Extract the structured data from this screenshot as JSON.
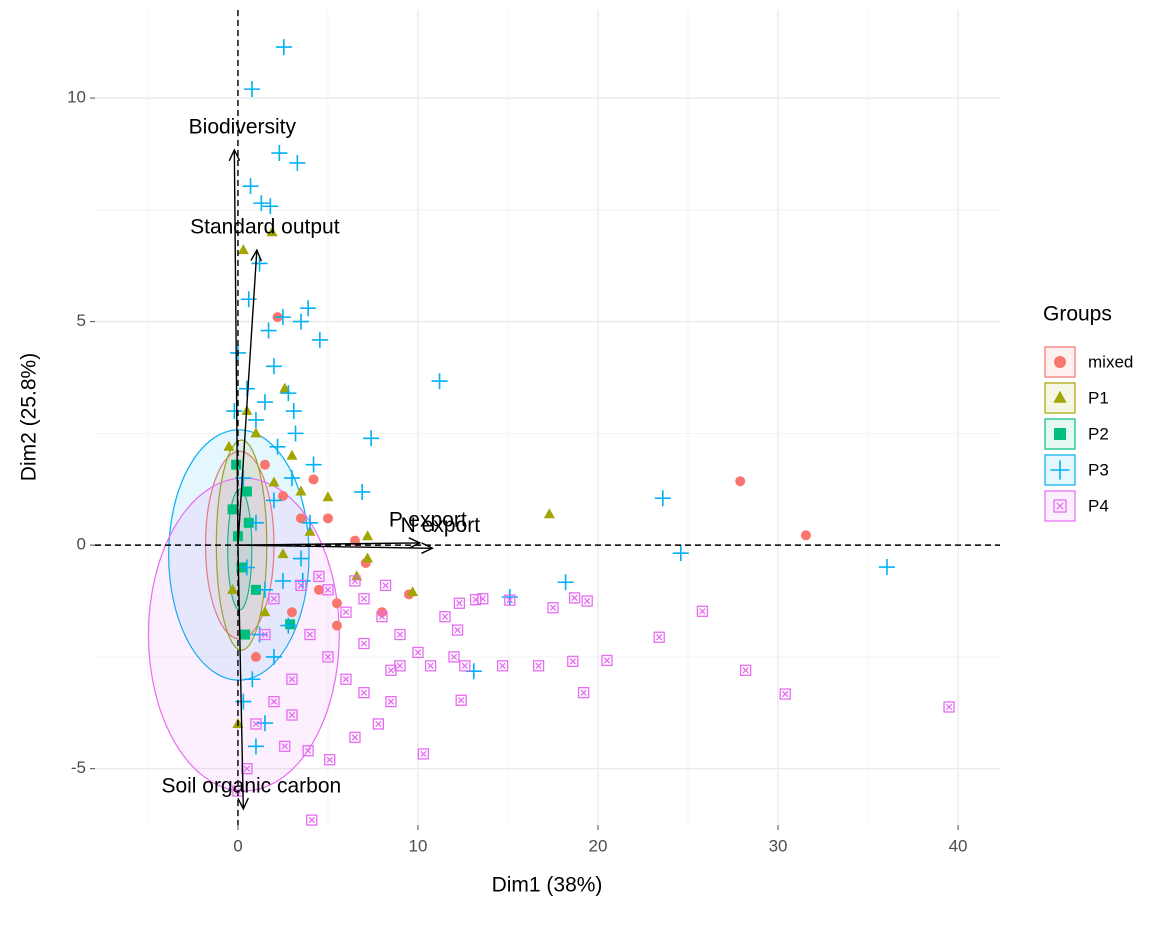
{
  "chart_data": {
    "type": "scatter",
    "x_label": "Dim1 (38%)",
    "y_label": "Dim2 (25.8%)",
    "xlim": [
      -7.94,
      42.33
    ],
    "ylim": [
      -6.26,
      11.97
    ],
    "xticks": [
      0,
      10,
      20,
      30,
      40
    ],
    "yticks": [
      -5,
      0,
      5,
      10
    ],
    "grid": true,
    "minor_grid": true,
    "reference_lines": {
      "x": 0,
      "y": 0
    },
    "legend_title": "Groups",
    "legend_position": "right",
    "series": [
      {
        "name": "mixed",
        "color": "#F8766D",
        "shape": "circle",
        "ellipse": {
          "cx": 0.1,
          "cy": 0,
          "rx": 1.9,
          "ry": 2.1
        },
        "x": [
          27.9,
          31.55,
          4.2,
          2.2,
          5.0,
          6.5,
          3.5,
          2.5,
          1.5,
          4.5,
          5.5,
          8.0,
          7.1,
          3.0,
          1.0,
          5.5,
          9.5
        ],
        "y": [
          1.43,
          0.22,
          1.47,
          5.1,
          0.6,
          0.1,
          0.6,
          1.1,
          1.8,
          -1.0,
          -1.3,
          -1.5,
          -0.4,
          -1.5,
          -2.5,
          -1.8,
          -1.1
        ]
      },
      {
        "name": "P1",
        "color": "#A3A500",
        "shape": "triangle",
        "ellipse": {
          "cx": 0.2,
          "cy": 0,
          "rx": 1.4,
          "ry": 2.35
        },
        "x": [
          1.9,
          0.3,
          2.6,
          17.3,
          9.7,
          7.2,
          5.0,
          3.0,
          2.0,
          1.0,
          0.5,
          -0.5,
          4.0,
          6.6,
          7.2,
          1.5,
          0,
          -0.3,
          3.5,
          2.5
        ],
        "y": [
          7.0,
          6.6,
          3.5,
          0.69,
          -1.05,
          -0.3,
          1.07,
          2.0,
          1.4,
          2.5,
          3.0,
          2.2,
          0.3,
          -0.7,
          0.2,
          -1.5,
          -4.0,
          -1.0,
          1.2,
          -0.2
        ]
      },
      {
        "name": "P2",
        "color": "#00BF7D",
        "shape": "square",
        "ellipse": {
          "cx": 0.1,
          "cy": -0.1,
          "rx": 0.67,
          "ry": 1.35
        },
        "x": [
          0,
          0.2,
          -0.3,
          0.5,
          2.9,
          1.0,
          0.4,
          -0.1,
          0.6
        ],
        "y": [
          0.2,
          -0.5,
          0.8,
          1.2,
          -1.77,
          -1.0,
          -2.0,
          1.8,
          0.5
        ]
      },
      {
        "name": "P3",
        "color": "#00B0F6",
        "shape": "plus",
        "ellipse": {
          "cx": 0.05,
          "cy": -0.22,
          "rx": 3.9,
          "ry": 2.8
        },
        "x": [
          2.55,
          0.78,
          2.3,
          3.3,
          0.7,
          1.3,
          1.8,
          2.5,
          3.5,
          3.9,
          4.55,
          11.2,
          7.4,
          6.9,
          23.6,
          24.6,
          36.05,
          18.2,
          15.1,
          13.1,
          1.5,
          0,
          0.5,
          1.0,
          1.5,
          2.0,
          2.8,
          3.1,
          3.2,
          3.0,
          2.0,
          1.0,
          0.5,
          1.5,
          2.5,
          3.5,
          4.0,
          1.2,
          2.0,
          0.8,
          0.3,
          1.0,
          2.8,
          3.6,
          2.2,
          1.7,
          0.6,
          1.2,
          0.3,
          -0.2,
          4.2
        ],
        "y": [
          11.14,
          10.2,
          8.77,
          8.55,
          8.03,
          7.65,
          7.58,
          5.1,
          5.0,
          5.3,
          4.59,
          3.67,
          2.39,
          1.19,
          1.05,
          -0.18,
          -0.49,
          -0.83,
          -1.16,
          -2.82,
          -3.98,
          4.3,
          3.5,
          2.8,
          3.2,
          4.0,
          3.4,
          3.0,
          2.5,
          1.5,
          1.0,
          0.5,
          -0.5,
          -1.0,
          -0.8,
          -0.3,
          0.5,
          -2.0,
          -2.5,
          -3.0,
          -3.5,
          -4.5,
          -1.8,
          -0.8,
          2.2,
          4.8,
          5.5,
          6.3,
          1.5,
          3.0,
          1.8
        ]
      },
      {
        "name": "P4",
        "color": "#E76BF3",
        "shape": "square-x",
        "ellipse": {
          "cx": 0.33,
          "cy": -2.0,
          "rx": 5.3,
          "ry": 3.5
        },
        "x": [
          39.5,
          30.4,
          28.2,
          25.8,
          23.4,
          19.4,
          18.7,
          17.5,
          18.6,
          20.5,
          16.7,
          19.2,
          15.1,
          13.6,
          13.2,
          12.3,
          11.5,
          12.2,
          12.0,
          12.6,
          12.4,
          14.7,
          10.7,
          10.3,
          8.5,
          7.8,
          6.5,
          5.1,
          3.9,
          2.6,
          4.1,
          5,
          6,
          7,
          8,
          9,
          4,
          5,
          6,
          7,
          3,
          2,
          1,
          0.5,
          0,
          1.5,
          2,
          3.5,
          4.5,
          6.5,
          8.2,
          9,
          10,
          3,
          7.0,
          8.5
        ],
        "y": [
          -3.62,
          -3.33,
          -2.8,
          -1.48,
          -2.06,
          -1.25,
          -1.18,
          -1.4,
          -2.6,
          -2.58,
          -2.7,
          -3.3,
          -1.23,
          -1.2,
          -1.22,
          -1.3,
          -1.6,
          -1.9,
          -2.5,
          -2.7,
          -3.47,
          -2.7,
          -2.7,
          -4.67,
          -3.5,
          -4.0,
          -4.3,
          -4.8,
          -4.6,
          -4.5,
          -6.15,
          -1,
          -1.5,
          -1.2,
          -1.6,
          -2.0,
          -2,
          -2.5,
          -3,
          -2.2,
          -3,
          -3.5,
          -4,
          -5,
          -5.5,
          -2,
          -1.2,
          -0.9,
          -0.7,
          -0.8,
          -0.9,
          -2.7,
          -2.4,
          -3.8,
          -3.3,
          -2.8
        ]
      }
    ],
    "variables": [
      {
        "label": "Biodiversity",
        "x": -0.2,
        "y": 8.84
      },
      {
        "label": "Standard output",
        "x": 1.05,
        "y": 6.6
      },
      {
        "label": "Soil organic carbon",
        "x": 0.3,
        "y": -5.9
      },
      {
        "label": "P export",
        "x": 10.1,
        "y": 0.05
      },
      {
        "label": "N export",
        "x": 10.8,
        "y": -0.07
      }
    ]
  }
}
